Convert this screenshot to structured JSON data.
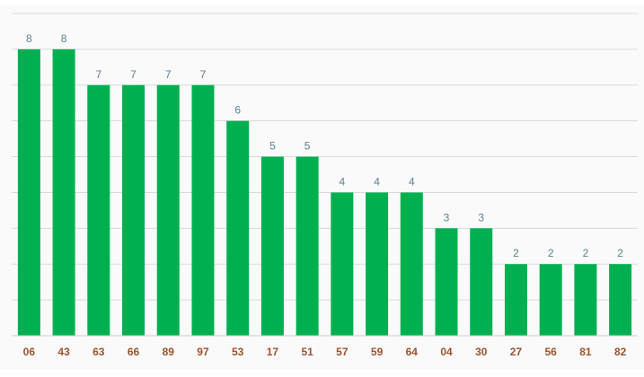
{
  "chart_data": {
    "type": "bar",
    "title": "",
    "xlabel": "",
    "ylabel": "",
    "categories": [
      "06",
      "43",
      "63",
      "66",
      "89",
      "97",
      "53",
      "17",
      "51",
      "57",
      "59",
      "64",
      "04",
      "30",
      "27",
      "56",
      "81",
      "82"
    ],
    "values": [
      8,
      8,
      7,
      7,
      7,
      7,
      6,
      5,
      5,
      4,
      4,
      4,
      3,
      3,
      2,
      2,
      2,
      2
    ],
    "ylim": [
      0,
      9
    ],
    "grid": true,
    "data_labels": true,
    "colors": {
      "bar": "#00b050",
      "category_label": "#a0522d",
      "value_label": "#5b7f95",
      "grid": "#d9d9d9"
    }
  }
}
